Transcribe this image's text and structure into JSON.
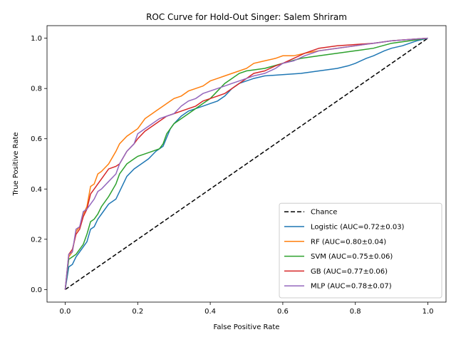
{
  "chart_data": {
    "type": "line",
    "title": "ROC Curve for Hold-Out Singer: Salem Shriram",
    "xlabel": "False Positive Rate",
    "ylabel": "True Positive Rate",
    "xlim": [
      -0.05,
      1.05
    ],
    "ylim": [
      -0.05,
      1.05
    ],
    "xticks": [
      "0.0",
      "0.2",
      "0.4",
      "0.6",
      "0.8",
      "1.0"
    ],
    "yticks": [
      "0.0",
      "0.2",
      "0.4",
      "0.6",
      "0.8",
      "1.0"
    ],
    "grid": false,
    "legend_position": "bottom-right",
    "series": [
      {
        "name": "Chance",
        "color": "#000000",
        "dashed": true,
        "x": [
          0,
          1
        ],
        "y": [
          0,
          1
        ]
      },
      {
        "name": "Logistic (AUC=0.72±0.03)",
        "color": "#1f77b4",
        "dashed": false,
        "x": [
          0,
          0.01,
          0.02,
          0.03,
          0.04,
          0.05,
          0.06,
          0.07,
          0.08,
          0.09,
          0.1,
          0.12,
          0.14,
          0.15,
          0.17,
          0.19,
          0.21,
          0.23,
          0.25,
          0.27,
          0.29,
          0.3,
          0.32,
          0.34,
          0.36,
          0.38,
          0.4,
          0.42,
          0.44,
          0.46,
          0.48,
          0.5,
          0.52,
          0.55,
          0.6,
          0.65,
          0.7,
          0.75,
          0.78,
          0.8,
          0.83,
          0.85,
          0.88,
          0.9,
          0.93,
          0.95,
          0.97,
          1.0
        ],
        "y": [
          0,
          0.09,
          0.1,
          0.13,
          0.15,
          0.17,
          0.19,
          0.24,
          0.25,
          0.28,
          0.3,
          0.34,
          0.36,
          0.39,
          0.45,
          0.48,
          0.5,
          0.52,
          0.55,
          0.57,
          0.64,
          0.66,
          0.69,
          0.71,
          0.72,
          0.73,
          0.74,
          0.75,
          0.77,
          0.8,
          0.82,
          0.83,
          0.84,
          0.85,
          0.855,
          0.86,
          0.87,
          0.88,
          0.89,
          0.9,
          0.92,
          0.93,
          0.95,
          0.96,
          0.97,
          0.98,
          0.99,
          1.0
        ]
      },
      {
        "name": "RF (AUC=0.80±0.04)",
        "color": "#ff7f0e",
        "dashed": false,
        "x": [
          0,
          0.01,
          0.02,
          0.03,
          0.04,
          0.05,
          0.06,
          0.07,
          0.08,
          0.09,
          0.1,
          0.12,
          0.14,
          0.15,
          0.17,
          0.19,
          0.2,
          0.22,
          0.24,
          0.25,
          0.27,
          0.29,
          0.3,
          0.32,
          0.34,
          0.36,
          0.38,
          0.4,
          0.42,
          0.44,
          0.46,
          0.48,
          0.5,
          0.52,
          0.55,
          0.58,
          0.6,
          0.63,
          0.66,
          0.7,
          0.75,
          0.8,
          0.85,
          0.9,
          0.95,
          1.0
        ],
        "y": [
          0,
          0.13,
          0.15,
          0.23,
          0.25,
          0.3,
          0.33,
          0.41,
          0.42,
          0.46,
          0.47,
          0.5,
          0.55,
          0.58,
          0.61,
          0.63,
          0.64,
          0.68,
          0.7,
          0.71,
          0.73,
          0.75,
          0.76,
          0.77,
          0.79,
          0.8,
          0.81,
          0.83,
          0.84,
          0.85,
          0.86,
          0.87,
          0.88,
          0.9,
          0.91,
          0.92,
          0.93,
          0.93,
          0.94,
          0.95,
          0.96,
          0.97,
          0.98,
          0.99,
          0.995,
          1.0
        ]
      },
      {
        "name": "SVM (AUC=0.75±0.06)",
        "color": "#2ca02c",
        "dashed": false,
        "x": [
          0,
          0.01,
          0.02,
          0.03,
          0.04,
          0.05,
          0.06,
          0.07,
          0.08,
          0.09,
          0.1,
          0.12,
          0.14,
          0.15,
          0.17,
          0.19,
          0.2,
          0.22,
          0.24,
          0.26,
          0.27,
          0.28,
          0.3,
          0.32,
          0.34,
          0.36,
          0.38,
          0.4,
          0.42,
          0.44,
          0.46,
          0.48,
          0.5,
          0.55,
          0.6,
          0.65,
          0.7,
          0.75,
          0.8,
          0.85,
          0.9,
          0.95,
          1.0
        ],
        "y": [
          0,
          0.12,
          0.13,
          0.14,
          0.16,
          0.18,
          0.22,
          0.27,
          0.28,
          0.3,
          0.33,
          0.37,
          0.42,
          0.46,
          0.5,
          0.52,
          0.53,
          0.54,
          0.55,
          0.56,
          0.58,
          0.62,
          0.66,
          0.68,
          0.7,
          0.72,
          0.74,
          0.76,
          0.79,
          0.82,
          0.84,
          0.86,
          0.87,
          0.88,
          0.9,
          0.92,
          0.93,
          0.94,
          0.95,
          0.96,
          0.98,
          0.99,
          1.0
        ]
      },
      {
        "name": "GB (AUC=0.77±0.06)",
        "color": "#d62728",
        "dashed": false,
        "x": [
          0,
          0.01,
          0.02,
          0.03,
          0.04,
          0.05,
          0.06,
          0.07,
          0.08,
          0.09,
          0.1,
          0.12,
          0.14,
          0.15,
          0.17,
          0.19,
          0.2,
          0.22,
          0.24,
          0.26,
          0.28,
          0.3,
          0.32,
          0.34,
          0.36,
          0.38,
          0.4,
          0.42,
          0.44,
          0.46,
          0.48,
          0.5,
          0.52,
          0.55,
          0.58,
          0.6,
          0.63,
          0.66,
          0.7,
          0.75,
          0.8,
          0.85,
          0.9,
          0.95,
          1.0
        ],
        "y": [
          0,
          0.14,
          0.16,
          0.22,
          0.24,
          0.29,
          0.32,
          0.38,
          0.4,
          0.42,
          0.44,
          0.48,
          0.49,
          0.5,
          0.55,
          0.58,
          0.6,
          0.63,
          0.65,
          0.67,
          0.69,
          0.7,
          0.71,
          0.72,
          0.73,
          0.75,
          0.76,
          0.77,
          0.78,
          0.8,
          0.82,
          0.84,
          0.86,
          0.87,
          0.89,
          0.9,
          0.92,
          0.94,
          0.96,
          0.97,
          0.975,
          0.98,
          0.99,
          0.995,
          1.0
        ]
      },
      {
        "name": "MLP (AUC=0.78±0.07)",
        "color": "#9467bd",
        "dashed": false,
        "x": [
          0,
          0.01,
          0.02,
          0.03,
          0.04,
          0.05,
          0.06,
          0.07,
          0.08,
          0.09,
          0.1,
          0.12,
          0.14,
          0.15,
          0.17,
          0.19,
          0.2,
          0.22,
          0.24,
          0.26,
          0.28,
          0.3,
          0.32,
          0.34,
          0.36,
          0.38,
          0.4,
          0.42,
          0.44,
          0.46,
          0.48,
          0.5,
          0.52,
          0.55,
          0.58,
          0.6,
          0.63,
          0.66,
          0.7,
          0.75,
          0.8,
          0.85,
          0.9,
          0.95,
          1.0
        ],
        "y": [
          0,
          0.14,
          0.15,
          0.24,
          0.25,
          0.31,
          0.32,
          0.34,
          0.36,
          0.39,
          0.4,
          0.43,
          0.46,
          0.5,
          0.55,
          0.58,
          0.62,
          0.64,
          0.66,
          0.68,
          0.69,
          0.7,
          0.73,
          0.75,
          0.76,
          0.78,
          0.79,
          0.8,
          0.81,
          0.82,
          0.83,
          0.84,
          0.85,
          0.86,
          0.88,
          0.9,
          0.91,
          0.93,
          0.95,
          0.96,
          0.97,
          0.98,
          0.99,
          0.995,
          1.0
        ]
      }
    ]
  }
}
